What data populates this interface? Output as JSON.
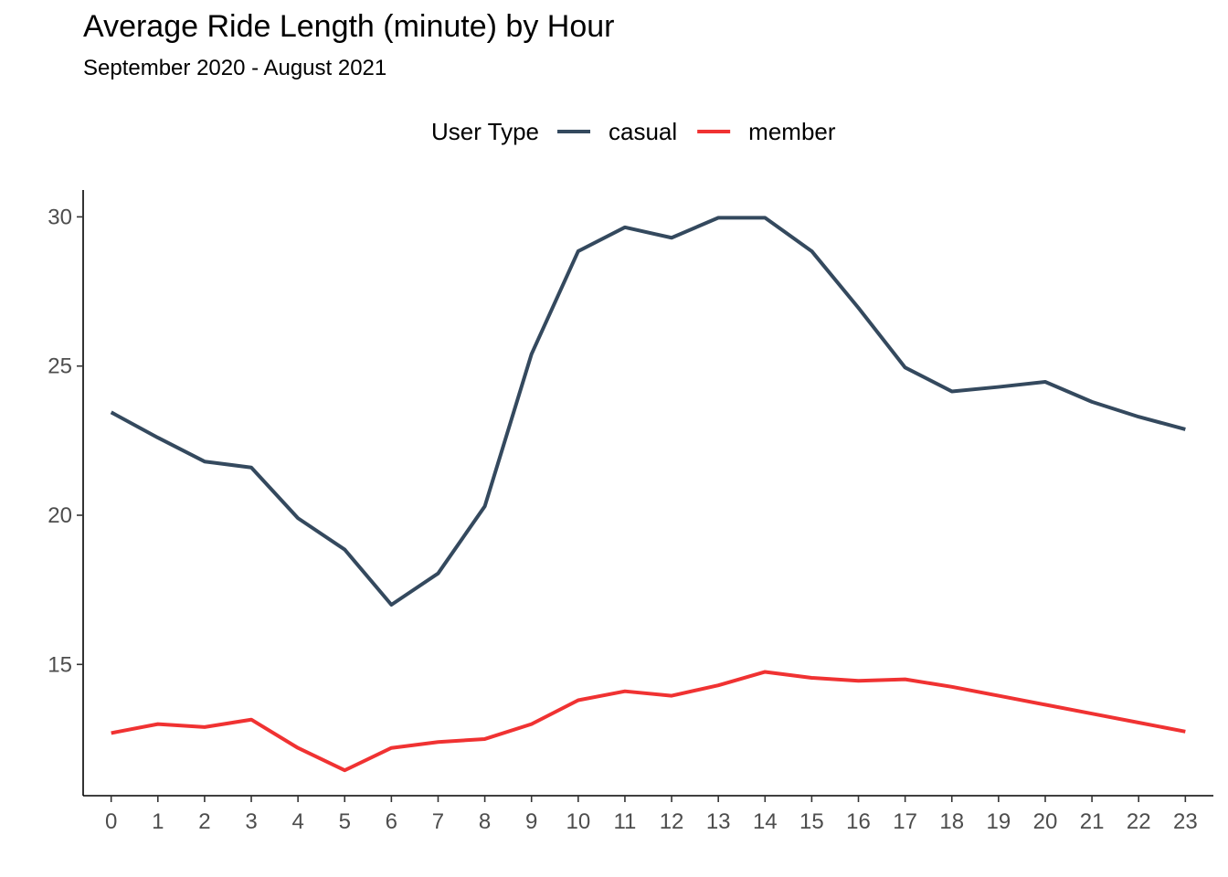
{
  "chart_data": {
    "type": "line",
    "title": "Average Ride Length (minute) by Hour",
    "subtitle": "September 2020 - August 2021",
    "xlabel": "",
    "ylabel": "",
    "x": [
      0,
      1,
      2,
      3,
      4,
      5,
      6,
      7,
      8,
      9,
      10,
      11,
      12,
      13,
      14,
      15,
      16,
      17,
      18,
      19,
      20,
      21,
      22,
      23
    ],
    "x_ticks": [
      "0",
      "1",
      "2",
      "3",
      "4",
      "5",
      "6",
      "7",
      "8",
      "9",
      "10",
      "11",
      "12",
      "13",
      "14",
      "15",
      "16",
      "17",
      "18",
      "19",
      "20",
      "21",
      "22",
      "23"
    ],
    "xlim": [
      -0.6,
      23.6
    ],
    "y_ticks": [
      15,
      20,
      25,
      30
    ],
    "ylim": [
      10.6,
      30.9
    ],
    "grid": false,
    "legend": {
      "title": "User Type",
      "position": "top"
    },
    "series": [
      {
        "name": "casual",
        "color": "#34495E",
        "values": [
          23.45,
          22.6,
          21.8,
          21.6,
          19.9,
          18.85,
          17.0,
          18.05,
          20.3,
          25.4,
          28.85,
          29.65,
          29.3,
          29.97,
          29.97,
          28.85,
          26.95,
          24.95,
          24.15,
          24.3,
          24.47,
          23.8,
          23.3,
          22.88
        ]
      },
      {
        "name": "member",
        "color": "#F03232",
        "values": [
          12.7,
          13.0,
          12.9,
          13.15,
          12.2,
          11.45,
          12.2,
          12.4,
          12.5,
          13.0,
          13.8,
          14.1,
          13.95,
          14.3,
          14.75,
          14.55,
          14.45,
          14.5,
          14.25,
          13.95,
          13.65,
          13.35,
          13.05,
          12.75
        ]
      }
    ]
  }
}
